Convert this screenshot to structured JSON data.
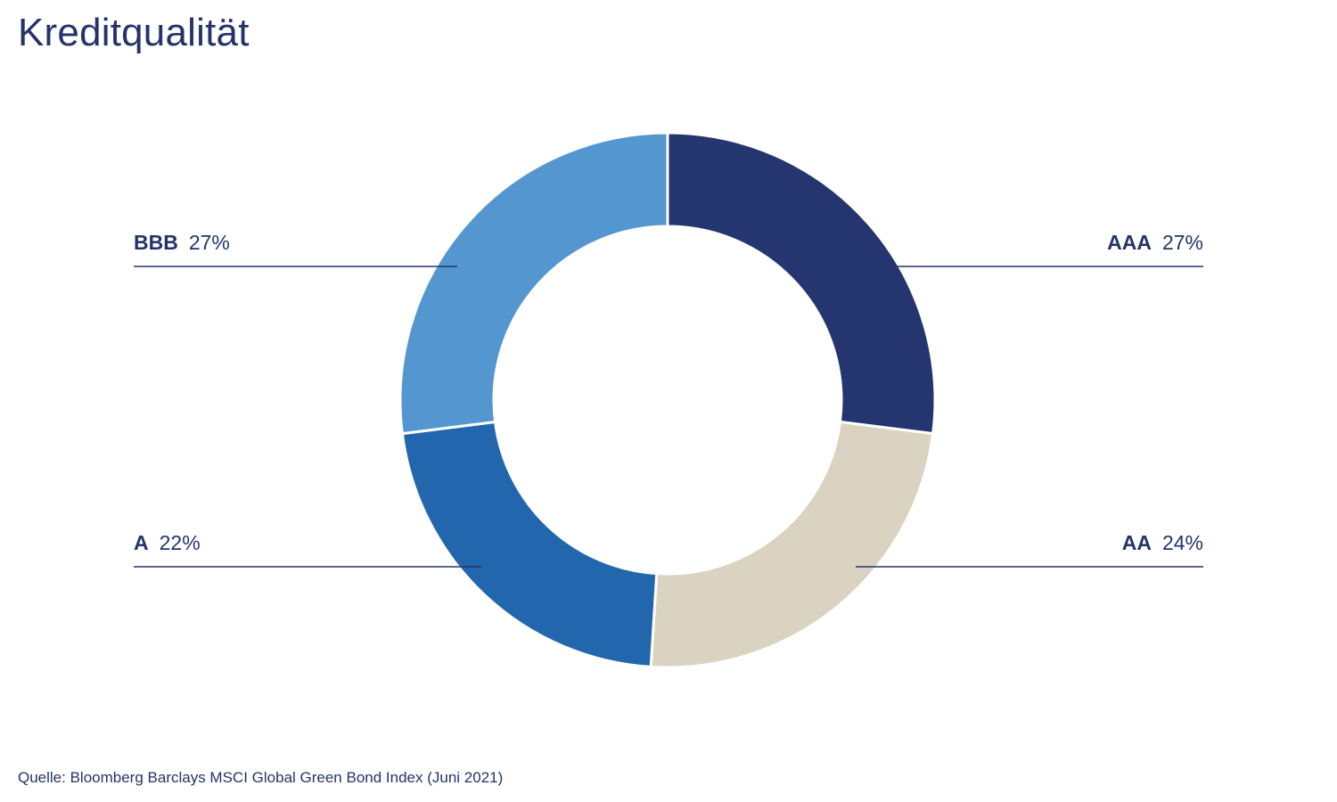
{
  "title": "Kreditqualität",
  "source": "Quelle: Bloomberg Barclays MSCI Global Green Bond Index (Juni 2021)",
  "chart_data": {
    "type": "pie",
    "donut": true,
    "slices": [
      {
        "label": "AAA",
        "value": 27,
        "value_label": "27%",
        "color": "#24356f",
        "side": "right"
      },
      {
        "label": "AA",
        "value": 24,
        "value_label": "24%",
        "color": "#dbd3c1",
        "side": "right"
      },
      {
        "label": "A",
        "value": 22,
        "value_label": "22%",
        "color": "#2267ad",
        "side": "left"
      },
      {
        "label": "BBB",
        "value": 27,
        "value_label": "27%",
        "color": "#5496cf",
        "side": "left"
      }
    ],
    "label_color": "#24346b",
    "start": "top",
    "direction": "clockwise"
  }
}
